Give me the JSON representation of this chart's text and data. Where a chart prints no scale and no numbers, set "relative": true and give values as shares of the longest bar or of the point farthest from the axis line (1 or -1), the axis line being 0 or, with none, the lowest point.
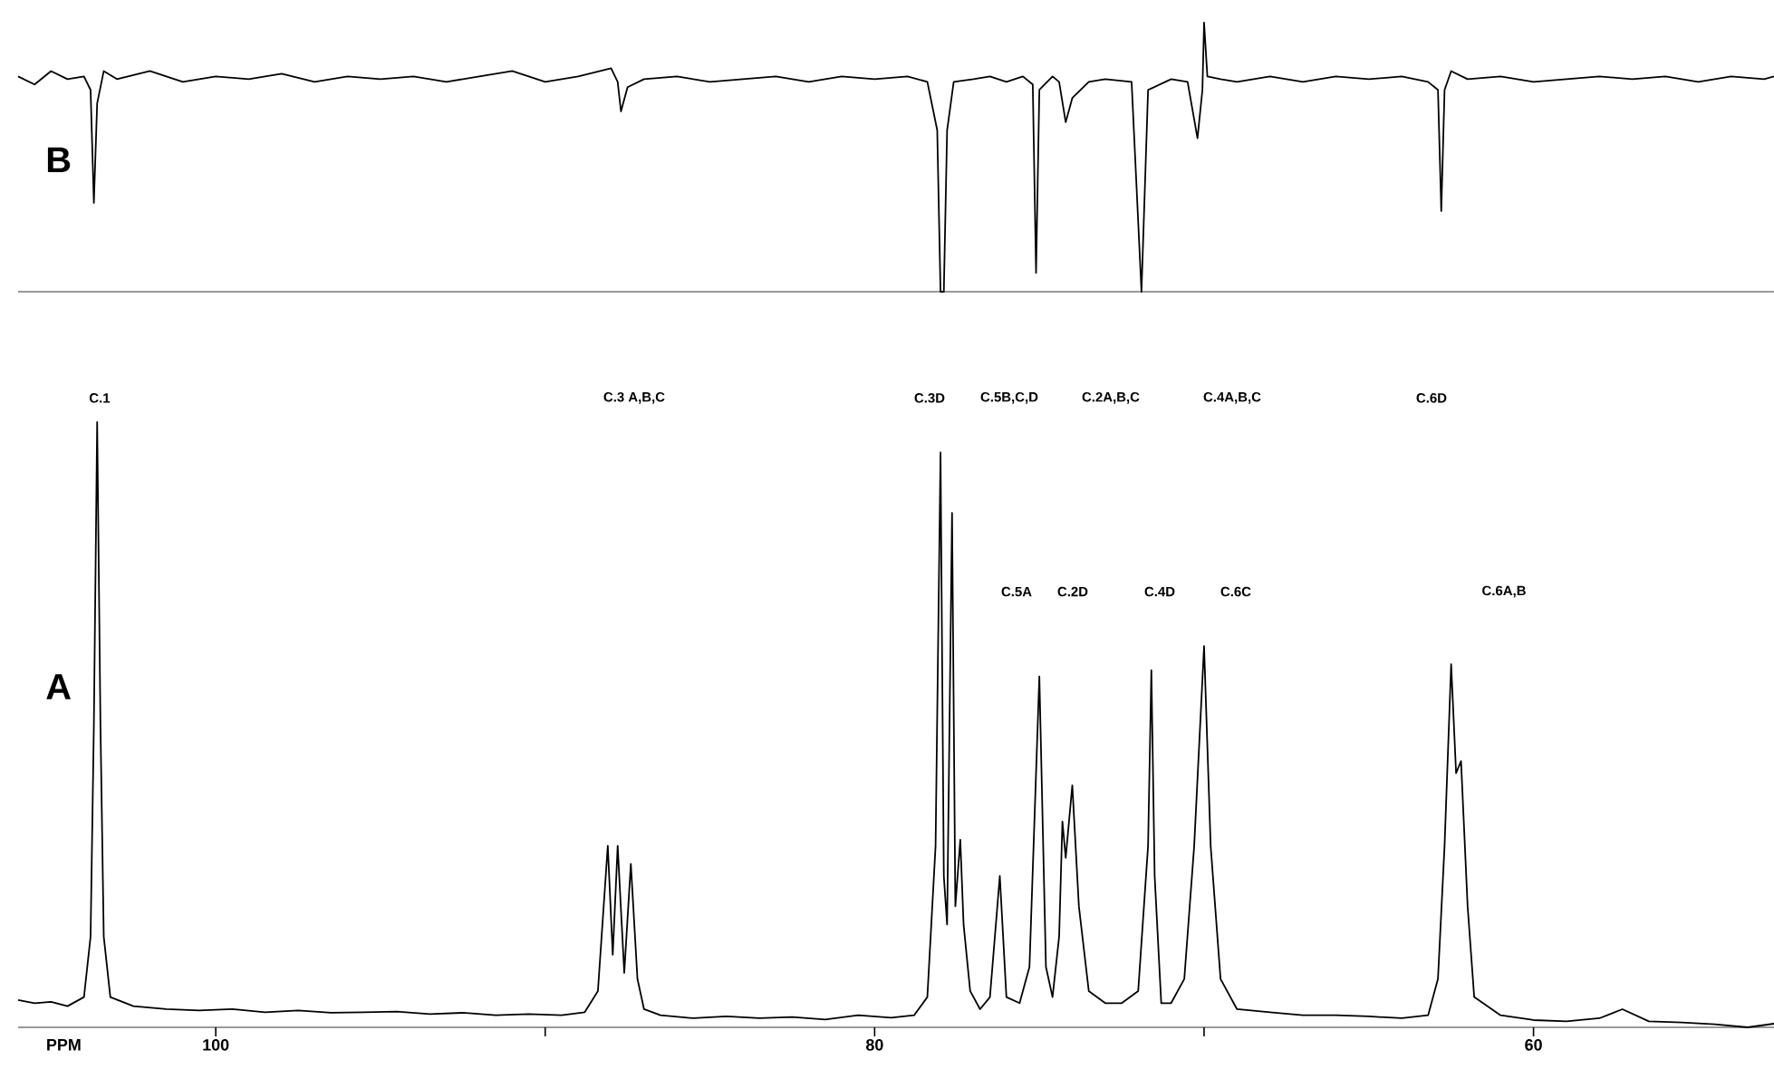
{
  "chart_data": [
    {
      "type": "line",
      "title": "B",
      "relative": true,
      "tick_labels": false,
      "xlim": [
        106.0,
        52.7
      ],
      "x": [
        106.0,
        105.5,
        105.0,
        104.5,
        104.0,
        103.8,
        103.7,
        103.6,
        103.4,
        103.0,
        102,
        101,
        100,
        99,
        98,
        97,
        96,
        95,
        94,
        93,
        92,
        91,
        90,
        89,
        88,
        87.8,
        87.7,
        87.5,
        87,
        86,
        85,
        84,
        83,
        82,
        81,
        80,
        79,
        78.4,
        78.1,
        78.0,
        77.9,
        77.8,
        77.6,
        77,
        76.5,
        76,
        75.5,
        75.2,
        75.1,
        75.0,
        74.6,
        74.4,
        74.2,
        74.0,
        73.5,
        73,
        72.2,
        71.9,
        71.7,
        71,
        70.5,
        70.2,
        70.05,
        70.0,
        69.9,
        69.5,
        69,
        68,
        67,
        66,
        65,
        64,
        63.2,
        62.9,
        62.8,
        62.7,
        62.5,
        62,
        61,
        60,
        59,
        58,
        57,
        56,
        55,
        54,
        53,
        52.7
      ],
      "series": [
        {
          "color": "#000000",
          "values": [
            0.8,
            0.77,
            0.82,
            0.79,
            0.8,
            0.75,
            0.33,
            0.7,
            0.82,
            0.79,
            0.82,
            0.78,
            0.8,
            0.79,
            0.81,
            0.78,
            0.8,
            0.79,
            0.8,
            0.78,
            0.8,
            0.82,
            0.78,
            0.8,
            0.83,
            0.78,
            0.67,
            0.76,
            0.79,
            0.8,
            0.78,
            0.79,
            0.8,
            0.78,
            0.8,
            0.79,
            0.8,
            0.78,
            0.6,
            0.0,
            0.0,
            0.6,
            0.78,
            0.79,
            0.8,
            0.78,
            0.8,
            0.77,
            0.07,
            0.75,
            0.8,
            0.78,
            0.63,
            0.72,
            0.78,
            0.79,
            0.78,
            0.0,
            0.75,
            0.79,
            0.78,
            0.57,
            0.75,
            1.0,
            0.8,
            0.79,
            0.78,
            0.8,
            0.78,
            0.8,
            0.79,
            0.8,
            0.78,
            0.75,
            0.3,
            0.75,
            0.82,
            0.79,
            0.8,
            0.78,
            0.79,
            0.8,
            0.79,
            0.8,
            0.78,
            0.8,
            0.79,
            0.8
          ]
        }
      ]
    },
    {
      "type": "line",
      "title": "A",
      "xlabel": "PPM",
      "relative": true,
      "xlim": [
        106.0,
        52.7
      ],
      "xticks": [
        100,
        {
          "value": 90,
          "label": null
        },
        80,
        {
          "value": 70,
          "label": null
        },
        60
      ],
      "x": [
        106.0,
        105.5,
        105.0,
        104.5,
        104.0,
        103.8,
        103.7,
        103.6,
        103.5,
        103.4,
        103.2,
        102.5,
        101.5,
        100.5,
        99.5,
        98.5,
        97.5,
        96.5,
        95.5,
        94.5,
        93.5,
        92.5,
        91.5,
        90.5,
        89.5,
        88.8,
        88.4,
        88.1,
        87.95,
        87.8,
        87.6,
        87.4,
        87.2,
        87.0,
        86.5,
        85.5,
        84.5,
        83.5,
        82.5,
        81.5,
        80.5,
        79.5,
        78.8,
        78.4,
        78.15,
        78.0,
        77.9,
        77.8,
        77.65,
        77.55,
        77.4,
        77.3,
        77.1,
        76.8,
        76.5,
        76.2,
        76.0,
        75.6,
        75.3,
        75.0,
        74.8,
        74.6,
        74.4,
        74.3,
        74.2,
        74.0,
        73.8,
        73.5,
        73.0,
        72.5,
        72.0,
        71.7,
        71.6,
        71.5,
        71.3,
        71.0,
        70.6,
        70.3,
        70.0,
        69.8,
        69.5,
        69.0,
        68.0,
        67.0,
        66.0,
        65.0,
        64.0,
        63.2,
        62.9,
        62.7,
        62.5,
        62.35,
        62.2,
        62.0,
        61.8,
        61.0,
        60.0,
        59.0,
        58.0,
        57.3,
        56.5,
        55.5,
        54.5,
        53.5,
        52.7
      ],
      "series": [
        {
          "color": "#000000",
          "values": [
            0.045,
            0.04,
            0.042,
            0.035,
            0.05,
            0.15,
            0.5,
            1.0,
            0.5,
            0.15,
            0.05,
            0.035,
            0.03,
            0.028,
            0.03,
            0.025,
            0.028,
            0.024,
            0.025,
            0.026,
            0.022,
            0.024,
            0.02,
            0.022,
            0.02,
            0.025,
            0.06,
            0.3,
            0.12,
            0.3,
            0.09,
            0.27,
            0.08,
            0.03,
            0.02,
            0.015,
            0.018,
            0.015,
            0.017,
            0.013,
            0.02,
            0.016,
            0.02,
            0.05,
            0.3,
            0.95,
            0.25,
            0.17,
            0.85,
            0.2,
            0.31,
            0.17,
            0.06,
            0.03,
            0.05,
            0.25,
            0.05,
            0.04,
            0.1,
            0.58,
            0.1,
            0.05,
            0.15,
            0.34,
            0.28,
            0.4,
            0.2,
            0.06,
            0.04,
            0.04,
            0.06,
            0.3,
            0.59,
            0.25,
            0.04,
            0.04,
            0.08,
            0.3,
            0.63,
            0.3,
            0.08,
            0.03,
            0.025,
            0.02,
            0.02,
            0.018,
            0.015,
            0.02,
            0.08,
            0.3,
            0.6,
            0.42,
            0.44,
            0.2,
            0.05,
            0.02,
            0.012,
            0.01,
            0.015,
            0.03,
            0.01,
            0.008,
            0.005,
            0.0,
            0.006
          ]
        }
      ],
      "annotations": [
        "C.1",
        "C.3 A,B,C",
        "C.3D",
        "C.5B,C,D",
        "C.2A,B,C",
        "C.4A,B,C",
        "C.6D",
        "C.5A",
        "C.2D",
        "C.4D",
        "C.6C",
        "C.6A,B"
      ]
    }
  ]
}
